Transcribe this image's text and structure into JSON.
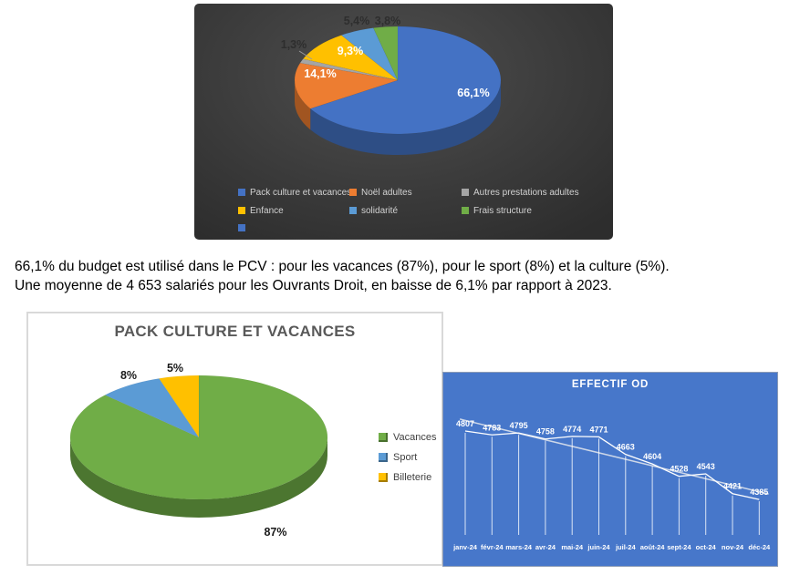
{
  "note": {
    "lines": [
      "66,1% du budget est utilisé dans le PCV : pour les vacances (87%), pour le sport (8%) et la culture (5%).",
      "Une moyenne de 4 653 salariés pour les Ouvrants Droit, en baisse de 6,1% par rapport à 2023."
    ]
  },
  "chart_data": [
    {
      "id": "budget-pie",
      "type": "pie",
      "title": "",
      "categories": [
        "Pack culture et vacances",
        "Noël adultes",
        "Autres prestations adultes",
        "Enfance",
        "solidarité",
        "Frais structure"
      ],
      "values": [
        66.1,
        14.1,
        1.3,
        9.3,
        5.4,
        3.8
      ],
      "data_labels": [
        "66,1%",
        "14,1%",
        "1,3%",
        "9,3%",
        "5,4%",
        "3,8%"
      ],
      "colors": [
        "#4472C4",
        "#ED7D31",
        "#A5A5A5",
        "#FFC000",
        "#5B9BD5",
        "#70AD47"
      ],
      "extra_legend": {
        "label": "",
        "color": "#4472C4"
      },
      "legend_position": "bottom",
      "style": "pie-3d",
      "background": "#3d3d3d"
    },
    {
      "id": "pcv-pie",
      "type": "pie",
      "title": "PACK CULTURE ET VACANCES",
      "categories": [
        "Vacances",
        "Sport",
        "Billeterie"
      ],
      "values": [
        87,
        8,
        5
      ],
      "data_labels": [
        "87%",
        "8%",
        "5%"
      ],
      "colors": [
        "#70AD47",
        "#5B9BD5",
        "#FFC000"
      ],
      "legend_position": "right",
      "style": "pie-3d",
      "background": "#ffffff"
    },
    {
      "id": "effectif-line",
      "type": "line",
      "title": "EFFECTIF OD",
      "categories": [
        "janv-24",
        "févr-24",
        "mars-24",
        "avr-24",
        "mai-24",
        "juin-24",
        "juil-24",
        "août-24",
        "sept-24",
        "oct-24",
        "nov-24",
        "déc-24"
      ],
      "values": [
        4807,
        4783,
        4795,
        4758,
        4774,
        4771,
        4663,
        4604,
        4528,
        4543,
        4421,
        4385
      ],
      "trendline": true,
      "line_color": "#FFFFFF",
      "trend_color": "#DCE2EC",
      "label_color": "#FFFFFF",
      "background": "#4777CA",
      "grid": false,
      "legend_position": "none"
    }
  ]
}
